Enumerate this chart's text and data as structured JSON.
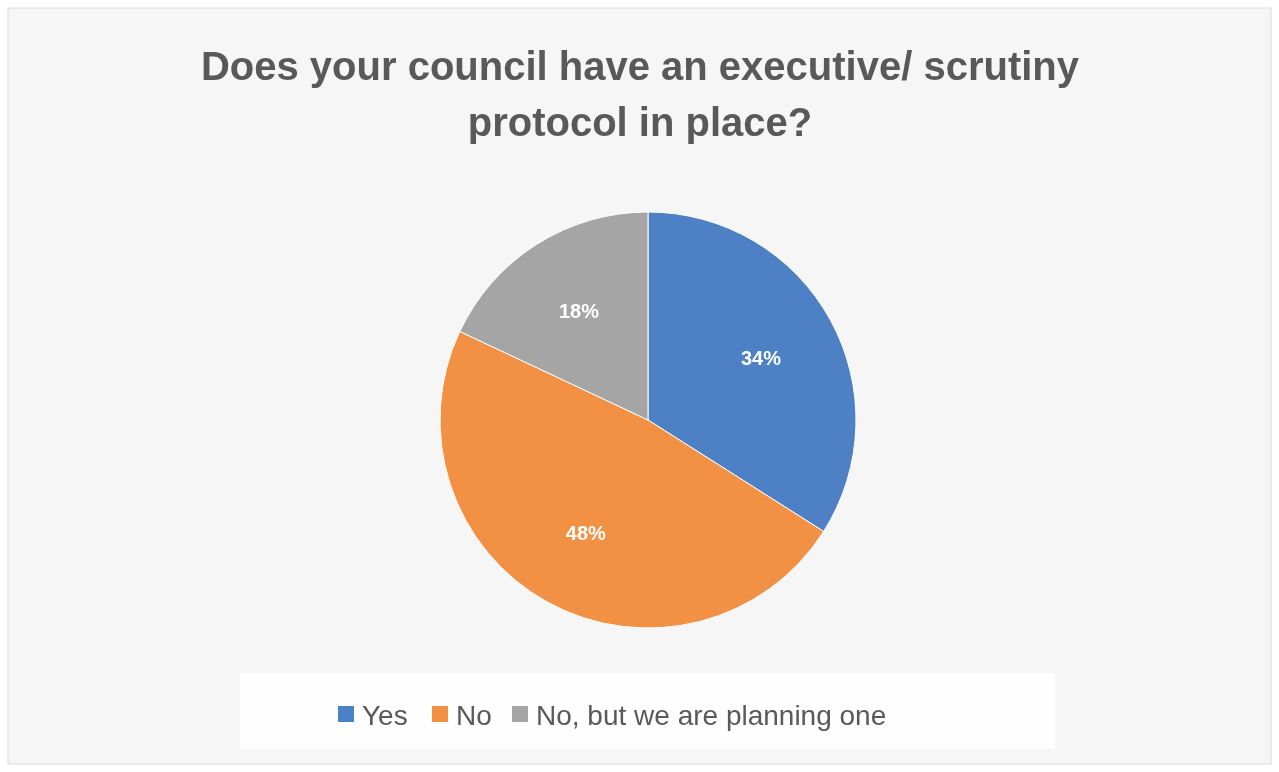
{
  "chart_data": {
    "type": "pie",
    "title": "Does your council have an executive/ scrutiny protocol in place?",
    "categories": [
      "Yes",
      "No",
      "No, but we are planning one"
    ],
    "values": [
      34,
      48,
      18
    ],
    "colors": [
      "#4e80c6",
      "#f29143",
      "#a5a5a5"
    ],
    "value_labels": [
      "34%",
      "48%",
      "18%"
    ],
    "legend": "bottom"
  }
}
